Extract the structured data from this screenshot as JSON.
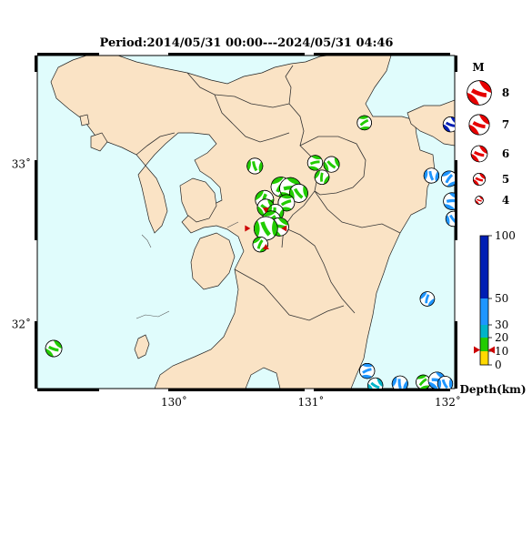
{
  "title": "Period:2014/05/31 00:00---2024/05/31 04:46",
  "map": {
    "lon_range": [
      129.0,
      132.05
    ],
    "lat_range": [
      31.6,
      33.68
    ],
    "lon_ticks": [
      {
        "value": 130,
        "label": "130˚"
      },
      {
        "value": 131,
        "label": "131˚"
      },
      {
        "value": 132,
        "label": "132˚"
      }
    ],
    "lat_ticks": [
      {
        "value": 33,
        "label": "33˚"
      },
      {
        "value": 32,
        "label": "32˚"
      }
    ],
    "colors": {
      "sea": "#e0fcfc",
      "land": "#fae3c5",
      "border": "#000000"
    },
    "events": [
      {
        "lon": 129.12,
        "lat": 31.85,
        "mag": 4.5,
        "depth": 18
      },
      {
        "lon": 130.59,
        "lat": 32.99,
        "mag": 4.4,
        "depth": 15
      },
      {
        "lon": 130.78,
        "lat": 32.86,
        "mag": 5.0,
        "depth": 11
      },
      {
        "lon": 130.85,
        "lat": 32.85,
        "mag": 5.3,
        "depth": 12
      },
      {
        "lon": 130.91,
        "lat": 32.82,
        "mag": 4.8,
        "depth": 11
      },
      {
        "lon": 130.66,
        "lat": 32.78,
        "mag": 4.8,
        "depth": 14
      },
      {
        "lon": 130.82,
        "lat": 32.76,
        "mag": 4.5,
        "depth": 13
      },
      {
        "lon": 130.67,
        "lat": 32.73,
        "mag": 4.6,
        "depth": 12
      },
      {
        "lon": 130.74,
        "lat": 32.7,
        "mag": 4.5,
        "depth": 11
      },
      {
        "lon": 130.71,
        "lat": 32.65,
        "mag": 4.9,
        "depth": 14
      },
      {
        "lon": 130.77,
        "lat": 32.61,
        "mag": 4.8,
        "depth": 15
      },
      {
        "lon": 130.67,
        "lat": 32.6,
        "mag": 5.6,
        "depth": 11
      },
      {
        "lon": 130.63,
        "lat": 32.5,
        "mag": 4.3,
        "depth": 11
      },
      {
        "lon": 131.03,
        "lat": 33.01,
        "mag": 4.3,
        "depth": 10
      },
      {
        "lon": 131.15,
        "lat": 33.0,
        "mag": 4.4,
        "depth": 11
      },
      {
        "lon": 131.08,
        "lat": 32.92,
        "mag": 4.2,
        "depth": 15
      },
      {
        "lon": 131.39,
        "lat": 33.26,
        "mag": 4.2,
        "depth": 10
      },
      {
        "lon": 132.02,
        "lat": 33.25,
        "mag": 4.3,
        "depth": 65
      },
      {
        "lon": 131.88,
        "lat": 32.93,
        "mag": 4.3,
        "depth": 35
      },
      {
        "lon": 132.01,
        "lat": 32.91,
        "mag": 4.4,
        "depth": 35
      },
      {
        "lon": 132.03,
        "lat": 32.77,
        "mag": 4.6,
        "depth": 35
      },
      {
        "lon": 132.04,
        "lat": 32.66,
        "mag": 4.3,
        "depth": 32
      },
      {
        "lon": 131.85,
        "lat": 32.16,
        "mag": 4.2,
        "depth": 38
      },
      {
        "lon": 131.41,
        "lat": 31.71,
        "mag": 4.3,
        "depth": 35
      },
      {
        "lon": 131.47,
        "lat": 31.62,
        "mag": 4.3,
        "depth": 28
      },
      {
        "lon": 131.65,
        "lat": 31.63,
        "mag": 4.4,
        "depth": 35
      },
      {
        "lon": 131.82,
        "lat": 31.64,
        "mag": 4.2,
        "depth": 18
      },
      {
        "lon": 131.92,
        "lat": 31.65,
        "mag": 4.6,
        "depth": 35
      },
      {
        "lon": 131.98,
        "lat": 31.63,
        "mag": 4.3,
        "depth": 35
      }
    ],
    "mainshock": {
      "lon": 130.67,
      "lat": 32.6
    }
  },
  "magnitude_legend": {
    "title": "M",
    "items": [
      {
        "label": "8",
        "mag": 8
      },
      {
        "label": "7",
        "mag": 7
      },
      {
        "label": "6",
        "mag": 6
      },
      {
        "label": "5",
        "mag": 5
      },
      {
        "label": "4",
        "mag": 4
      }
    ]
  },
  "depth_scale": {
    "title": "Depth(km)",
    "ticks": [
      "100",
      "50",
      "30",
      "20",
      "10",
      "0"
    ],
    "bands": [
      {
        "from": 0,
        "to": 10,
        "color": "#ffd900"
      },
      {
        "from": 10,
        "to": 20,
        "color": "#22cc00"
      },
      {
        "from": 20,
        "to": 30,
        "color": "#00b4c8"
      },
      {
        "from": 30,
        "to": 50,
        "color": "#1e96ff"
      },
      {
        "from": 50,
        "to": 100,
        "color": "#001eb4"
      }
    ],
    "marker_depth": 11
  }
}
